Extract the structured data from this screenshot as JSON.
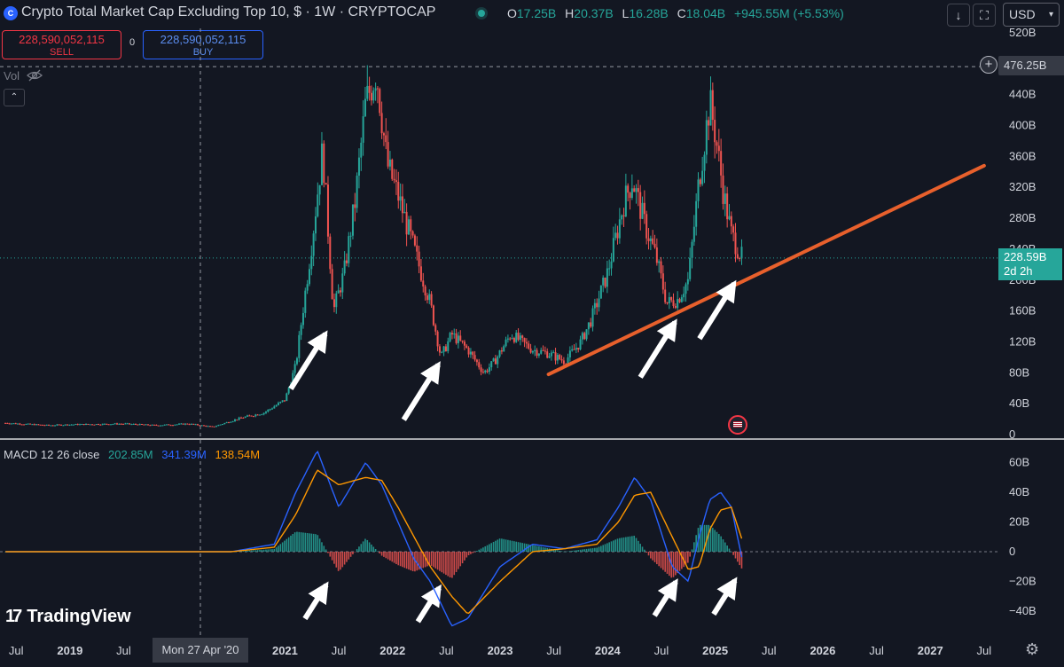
{
  "header": {
    "title": "Crypto Total Market Cap Excluding Top 10, $ · 1W · CRYPTOCAP",
    "logo_text": "C",
    "ohlc": [
      {
        "label": "O",
        "value": "17.25B"
      },
      {
        "label": "H",
        "value": "20.37B"
      },
      {
        "label": "L",
        "value": "16.28B"
      },
      {
        "label": "C",
        "value": "18.04B"
      },
      {
        "label": "",
        "value": "+945.55M (+5.53%)"
      }
    ],
    "currency": "USD",
    "download_icon": "↓",
    "fullscreen_icon": "⛶"
  },
  "trade": {
    "sell_price": "228,590,052,115",
    "sell_label": "SELL",
    "spread": "0",
    "buy_price": "228,590,052,115",
    "buy_label": "BUY"
  },
  "volume": {
    "label": "Vol",
    "hidden_icon": "eye-off-icon",
    "collapse_icon": "⌃"
  },
  "price_axis": {
    "ticks": [
      "520B",
      "440B",
      "400B",
      "360B",
      "320B",
      "280B",
      "240B",
      "200B",
      "160B",
      "120B",
      "80B",
      "40B",
      "0"
    ],
    "crosshair_label": "476.25B",
    "crosshair_value": 476.25,
    "current_price": "228.59B",
    "current_value": 228.59,
    "countdown": "2d 2h"
  },
  "macd": {
    "name": "MACD 12 26 close",
    "histogram": "202.85M",
    "macd": "341.39M",
    "signal": "138.54M",
    "ticks": [
      "60B",
      "40B",
      "20B",
      "0",
      "−20B",
      "−40B"
    ]
  },
  "time_axis": {
    "labels": [
      "Jul",
      "2019",
      "Jul",
      "2021",
      "Jul",
      "2022",
      "Jul",
      "2023",
      "Jul",
      "2024",
      "Jul",
      "2025",
      "Jul",
      "2026",
      "Jul",
      "2027",
      "Jul"
    ],
    "crosshair_date": "Mon 27 Apr '20"
  },
  "branding": {
    "logo_mark": "17",
    "name": "TradingView"
  },
  "colors": {
    "background": "#131722",
    "up": "#26a69a",
    "down": "#ef5350",
    "macd_line": "#2962ff",
    "signal_line": "#ff9800",
    "trendline": "#e8602c",
    "arrow": "#ffffff"
  },
  "chart_data": [
    {
      "type": "candlestick",
      "title": "Crypto Total Market Cap Excluding Top 10, $ · 1W · CRYPTOCAP",
      "ylabel": "",
      "ylim": [
        0,
        520
      ],
      "x_unit": "year",
      "xlim": [
        2018.35,
        2027.6
      ],
      "series": [
        {
          "x": [
            2018.4,
            2018.8,
            2019.0,
            2019.5,
            2019.8,
            2020.1,
            2020.33,
            2020.6,
            2020.8,
            2021.0,
            2021.1,
            2021.25,
            2021.35,
            2021.45,
            2021.55,
            2021.65,
            2021.75,
            2021.85,
            2021.95,
            2022.05,
            2022.2,
            2022.35,
            2022.45,
            2022.55,
            2022.7,
            2022.85,
            2022.95,
            2023.1,
            2023.3,
            2023.45,
            2023.6,
            2023.75,
            2023.85,
            2024.0,
            2024.15,
            2024.23,
            2024.35,
            2024.45,
            2024.55,
            2024.65,
            2024.75,
            2024.85,
            2024.95,
            2025.0,
            2025.08,
            2025.15,
            2025.25
          ],
          "y": [
            15,
            12,
            13,
            14,
            12,
            14,
            10,
            22,
            28,
            45,
            90,
            250,
            370,
            160,
            210,
            300,
            430,
            470,
            350,
            310,
            240,
            170,
            100,
            130,
            110,
            80,
            95,
            130,
            110,
            105,
            95,
            120,
            150,
            210,
            300,
            330,
            270,
            230,
            170,
            175,
            200,
            330,
            430,
            390,
            310,
            260,
            228.59
          ]
        }
      ],
      "annotations": [
        {
          "type": "trendline",
          "from": [
            2023.45,
            78
          ],
          "to": [
            2027.5,
            348
          ]
        },
        {
          "type": "arrow",
          "target": [
            2021.4,
            135
          ]
        },
        {
          "type": "arrow",
          "target": [
            2022.45,
            95
          ]
        },
        {
          "type": "arrow",
          "target": [
            2024.65,
            150
          ]
        },
        {
          "type": "arrow",
          "target": [
            2025.2,
            200
          ]
        }
      ]
    },
    {
      "type": "line",
      "title": "MACD 12 26 close",
      "ylim": [
        -50,
        70
      ],
      "x_unit": "year",
      "series": [
        {
          "name": "MACD",
          "x": [
            2018.4,
            2020.5,
            2020.9,
            2021.1,
            2021.3,
            2021.5,
            2021.75,
            2021.9,
            2022.05,
            2022.2,
            2022.35,
            2022.55,
            2022.7,
            2023.0,
            2023.3,
            2023.6,
            2023.9,
            2024.1,
            2024.25,
            2024.4,
            2024.6,
            2024.75,
            2024.85,
            2024.95,
            2025.05,
            2025.15,
            2025.25
          ],
          "y": [
            0,
            0,
            5,
            40,
            68,
            30,
            60,
            45,
            20,
            -5,
            -20,
            -50,
            -45,
            -10,
            5,
            2,
            8,
            30,
            50,
            35,
            -10,
            -20,
            10,
            35,
            40,
            30,
            -5
          ]
        },
        {
          "name": "Signal",
          "x": [
            2018.4,
            2020.5,
            2020.9,
            2021.1,
            2021.3,
            2021.5,
            2021.75,
            2021.9,
            2022.05,
            2022.2,
            2022.35,
            2022.55,
            2022.7,
            2023.0,
            2023.3,
            2023.6,
            2023.9,
            2024.1,
            2024.25,
            2024.4,
            2024.6,
            2024.75,
            2024.85,
            2024.95,
            2025.05,
            2025.15,
            2025.25
          ],
          "y": [
            0,
            0,
            3,
            25,
            55,
            45,
            50,
            48,
            30,
            10,
            -10,
            -30,
            -42,
            -20,
            0,
            2,
            5,
            20,
            38,
            40,
            10,
            -12,
            -10,
            15,
            28,
            30,
            8
          ]
        }
      ]
    }
  ]
}
